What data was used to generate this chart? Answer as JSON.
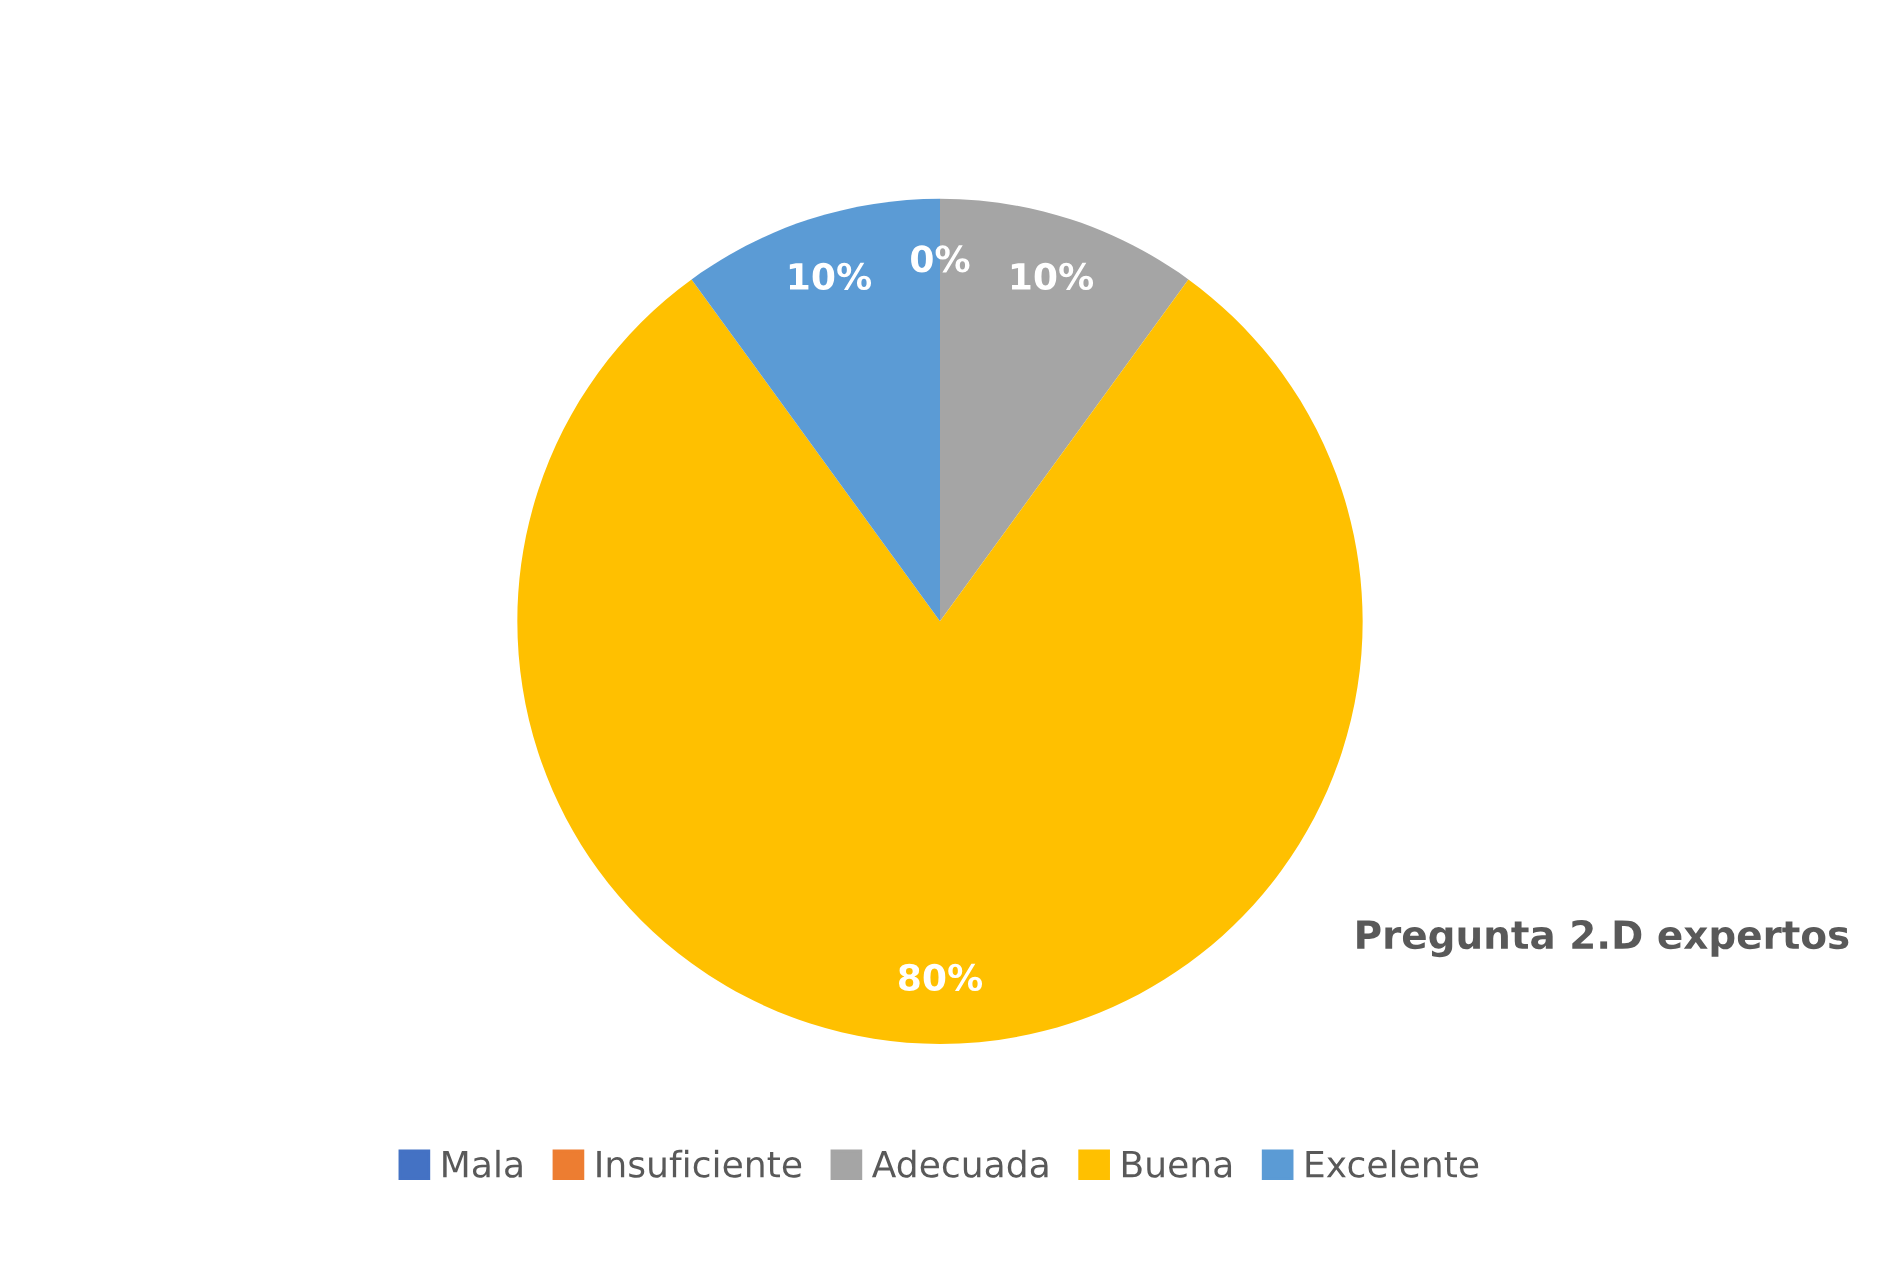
{
  "chart_data": {
    "type": "pie",
    "title": "Pregunta 2.D expertos",
    "categories": [
      "Mala",
      "Insuficiente",
      "Adecuada",
      "Buena",
      "Excelente"
    ],
    "values": [
      0,
      0,
      10,
      80,
      10
    ],
    "colors": [
      "#4472c4",
      "#ed7d31",
      "#a5a5a5",
      "#ffc000",
      "#5b9bd5"
    ],
    "value_labels": [
      "0%",
      null,
      "10%",
      "80%",
      "10%"
    ],
    "legend": "bottom"
  }
}
